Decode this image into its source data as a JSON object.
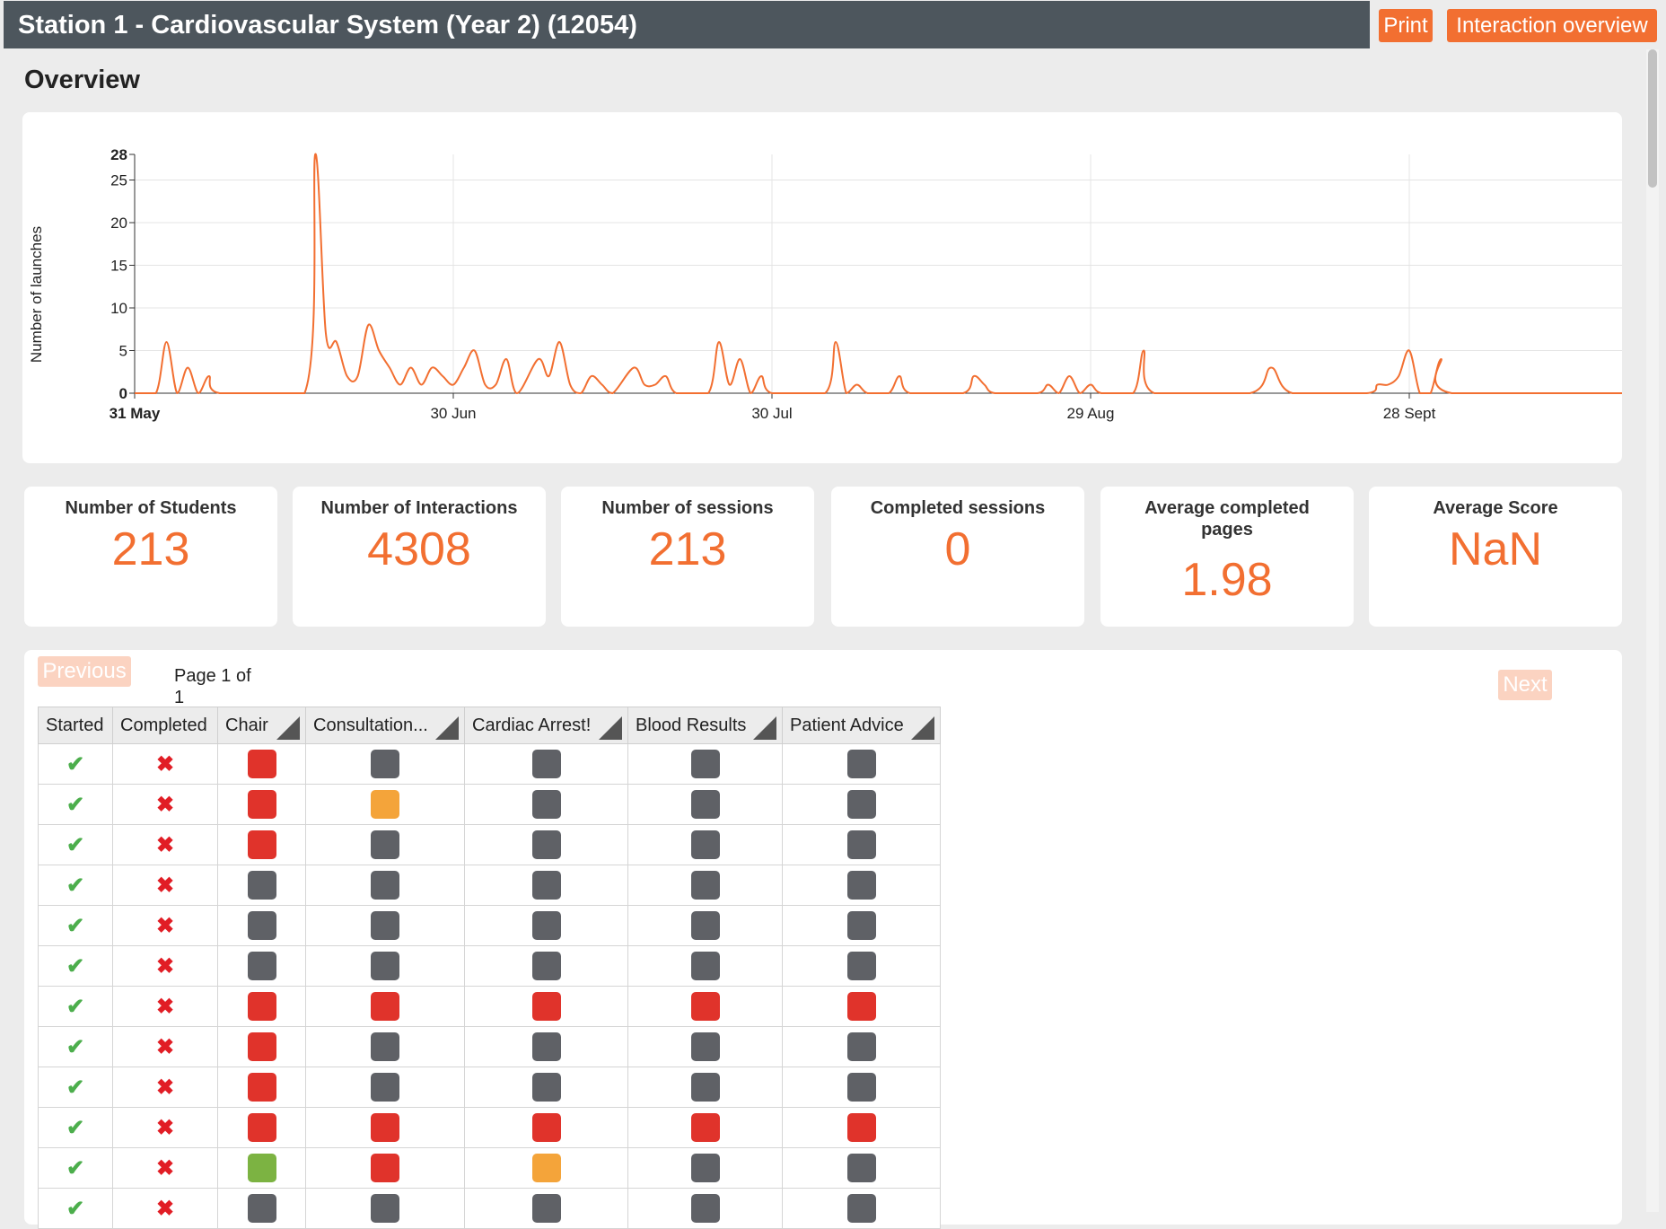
{
  "header": {
    "title": "Station 1 - Cardiovascular System (Year 2) (12054)",
    "print_label": "Print",
    "interaction_label": "Interaction overview"
  },
  "overview": {
    "heading": "Overview"
  },
  "colors": {
    "accent": "#f26f31",
    "header_bg": "#4d565d",
    "red": "#e0332b",
    "grey": "#5f6166",
    "orange": "#f4a43a",
    "green": "#7cb342"
  },
  "chart_data": {
    "type": "line",
    "ylabel": "Number of launches",
    "xlabel": "",
    "x_start": "31 May",
    "x_ticks": [
      "31 May",
      "30 Jun",
      "30 Jul",
      "29 Aug",
      "28 Sept"
    ],
    "y_ticks": [
      0,
      5,
      10,
      15,
      20,
      25,
      28
    ],
    "ylim": [
      0,
      28
    ],
    "grid": true,
    "series": [
      {
        "values": [
          {
            "x": "31 May",
            "y": 0
          },
          {
            "x": "2 Jun",
            "y": 0
          },
          {
            "x": "3 Jun",
            "y": 6
          },
          {
            "x": "4 Jun",
            "y": 0
          },
          {
            "x": "5 Jun",
            "y": 3
          },
          {
            "x": "6 Jun",
            "y": 0
          },
          {
            "x": "7 Jun",
            "y": 2
          },
          {
            "x": "8 Jun",
            "y": 0
          },
          {
            "x": "16 Jun",
            "y": 0
          },
          {
            "x": "17 Jun",
            "y": 28
          },
          {
            "x": "18 Jun",
            "y": 7
          },
          {
            "x": "19 Jun",
            "y": 6
          },
          {
            "x": "20 Jun",
            "y": 2
          },
          {
            "x": "21 Jun",
            "y": 2
          },
          {
            "x": "22 Jun",
            "y": 8
          },
          {
            "x": "23 Jun",
            "y": 5
          },
          {
            "x": "24 Jun",
            "y": 3
          },
          {
            "x": "25 Jun",
            "y": 1
          },
          {
            "x": "26 Jun",
            "y": 3
          },
          {
            "x": "27 Jun",
            "y": 1
          },
          {
            "x": "28 Jun",
            "y": 3
          },
          {
            "x": "29 Jun",
            "y": 2
          },
          {
            "x": "30 Jun",
            "y": 1
          },
          {
            "x": "1 Jul",
            "y": 3
          },
          {
            "x": "2 Jul",
            "y": 5
          },
          {
            "x": "3 Jul",
            "y": 1
          },
          {
            "x": "4 Jul",
            "y": 1
          },
          {
            "x": "5 Jul",
            "y": 4
          },
          {
            "x": "6 Jul",
            "y": 0
          },
          {
            "x": "8 Jul",
            "y": 4
          },
          {
            "x": "9 Jul",
            "y": 2
          },
          {
            "x": "10 Jul",
            "y": 6
          },
          {
            "x": "11 Jul",
            "y": 1
          },
          {
            "x": "12 Jul",
            "y": 0
          },
          {
            "x": "13 Jul",
            "y": 2
          },
          {
            "x": "14 Jul",
            "y": 1
          },
          {
            "x": "15 Jul",
            "y": 0
          },
          {
            "x": "17 Jul",
            "y": 3
          },
          {
            "x": "18 Jul",
            "y": 1
          },
          {
            "x": "19 Jul",
            "y": 1
          },
          {
            "x": "20 Jul",
            "y": 2
          },
          {
            "x": "21 Jul",
            "y": 0
          },
          {
            "x": "24 Jul",
            "y": 0
          },
          {
            "x": "25 Jul",
            "y": 6
          },
          {
            "x": "26 Jul",
            "y": 1
          },
          {
            "x": "27 Jul",
            "y": 4
          },
          {
            "x": "28 Jul",
            "y": 0
          },
          {
            "x": "29 Jul",
            "y": 2
          },
          {
            "x": "30 Jul",
            "y": 0
          },
          {
            "x": "4 Aug",
            "y": 0
          },
          {
            "x": "5 Aug",
            "y": 6
          },
          {
            "x": "6 Aug",
            "y": 0
          },
          {
            "x": "7 Aug",
            "y": 1
          },
          {
            "x": "8 Aug",
            "y": 0
          },
          {
            "x": "10 Aug",
            "y": 0
          },
          {
            "x": "11 Aug",
            "y": 2
          },
          {
            "x": "12 Aug",
            "y": 0
          },
          {
            "x": "17 Aug",
            "y": 0
          },
          {
            "x": "18 Aug",
            "y": 2
          },
          {
            "x": "19 Aug",
            "y": 1
          },
          {
            "x": "20 Aug",
            "y": 0
          },
          {
            "x": "24 Aug",
            "y": 0
          },
          {
            "x": "25 Aug",
            "y": 1
          },
          {
            "x": "26 Aug",
            "y": 0
          },
          {
            "x": "27 Aug",
            "y": 2
          },
          {
            "x": "28 Aug",
            "y": 0
          },
          {
            "x": "29 Aug",
            "y": 1
          },
          {
            "x": "30 Aug",
            "y": 0
          },
          {
            "x": "2 Sept",
            "y": 0
          },
          {
            "x": "3 Sept",
            "y": 5
          },
          {
            "x": "4 Sept",
            "y": 0
          },
          {
            "x": "13 Sept",
            "y": 0
          },
          {
            "x": "15 Sept",
            "y": 3
          },
          {
            "x": "17 Sept",
            "y": 0
          },
          {
            "x": "24 Sept",
            "y": 0
          },
          {
            "x": "25 Sept",
            "y": 1
          },
          {
            "x": "26 Sept",
            "y": 1
          },
          {
            "x": "27 Sept",
            "y": 2
          },
          {
            "x": "28 Sept",
            "y": 5
          },
          {
            "x": "29 Sept",
            "y": 0
          },
          {
            "x": "30 Sept",
            "y": 0
          },
          {
            "x": "1 Oct",
            "y": 4
          },
          {
            "x": "2 Oct",
            "y": 0
          },
          {
            "x": "19 Oct",
            "y": 0
          }
        ]
      }
    ]
  },
  "stats": [
    {
      "label": "Number of Students",
      "value": "213"
    },
    {
      "label": "Number of Interactions",
      "value": "4308"
    },
    {
      "label": "Number of sessions",
      "value": "213"
    },
    {
      "label": "Completed sessions",
      "value": "0"
    },
    {
      "label": "Average completed pages",
      "value": "1.98"
    },
    {
      "label": "Average Score",
      "value": "NaN"
    }
  ],
  "pager": {
    "previous": "Previous",
    "next": "Next",
    "page_info": "Page 1 of 1"
  },
  "table": {
    "columns": [
      "Started",
      "Completed",
      "Chair",
      "Consultation...",
      "Cardiac Arrest!",
      "Blood Results",
      "Patient Advice"
    ],
    "rows": [
      [
        "red",
        "grey",
        "grey",
        "grey",
        "grey"
      ],
      [
        "red",
        "orange",
        "grey",
        "grey",
        "grey"
      ],
      [
        "red",
        "grey",
        "grey",
        "grey",
        "grey"
      ],
      [
        "grey",
        "grey",
        "grey",
        "grey",
        "grey"
      ],
      [
        "grey",
        "grey",
        "grey",
        "grey",
        "grey"
      ],
      [
        "grey",
        "grey",
        "grey",
        "grey",
        "grey"
      ],
      [
        "red",
        "red",
        "red",
        "red",
        "red"
      ],
      [
        "red",
        "grey",
        "grey",
        "grey",
        "grey"
      ],
      [
        "red",
        "grey",
        "grey",
        "grey",
        "grey"
      ],
      [
        "red",
        "red",
        "red",
        "red",
        "red"
      ],
      [
        "green",
        "red",
        "orange",
        "grey",
        "grey"
      ],
      [
        "grey",
        "grey",
        "grey",
        "grey",
        "grey"
      ]
    ]
  }
}
